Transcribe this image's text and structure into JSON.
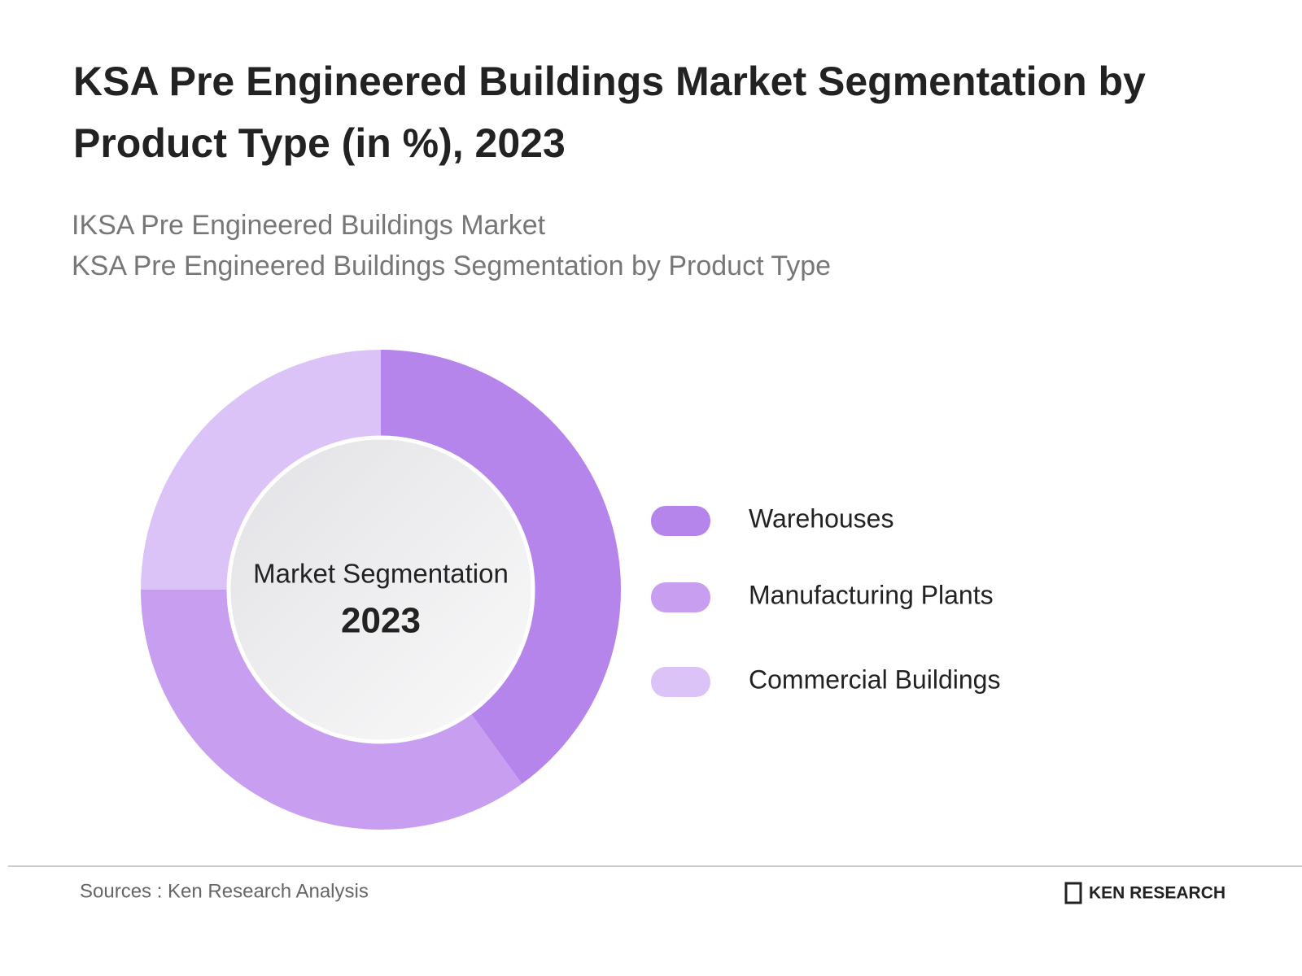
{
  "chart_data": {
    "type": "pie",
    "title": "KSA Pre Engineered Buildings Market Segmentation by Product Type (in %), 2023",
    "subtitle": [
      "IKSA Pre Engineered Buildings Market",
      "KSA Pre Engineered Buildings Segmentation by Product Type"
    ],
    "categories": [
      "Warehouses",
      "Manufacturing Plants",
      "Commercial Buildings"
    ],
    "values": [
      40,
      35,
      25
    ],
    "colors": [
      "#b585ec",
      "#c79ef0",
      "#dcc3f7"
    ],
    "center_label": "Market Segmentation",
    "center_year": "2023",
    "source": "Sources : Ken Research Analysis",
    "logo": "KEN RESEARCH"
  }
}
